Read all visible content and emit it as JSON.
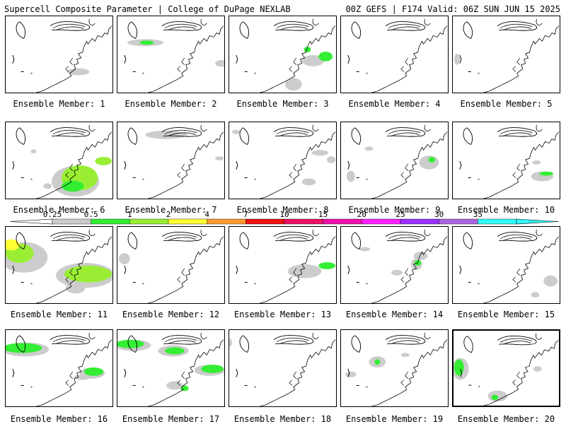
{
  "header": {
    "left": "Supercell Composite Parameter | College of DuPage NEXLAB",
    "right": "00Z GEFS | F174 Valid: 06Z SUN JUN 15 2025"
  },
  "label_prefix": "Ensemble Member: ",
  "selected_member": 20,
  "colorbar": {
    "ticks": [
      "0.25",
      "0.5",
      "1",
      "2",
      "4",
      "7",
      "10",
      "15",
      "20",
      "25",
      "30",
      "35"
    ],
    "colors": [
      "#cccccc",
      "#33ee33",
      "#99ee33",
      "#ffff33",
      "#ff9933",
      "#ee1111",
      "#ee1166",
      "#ee11aa",
      "#ff22ff",
      "#9933ff",
      "#aa66dd",
      "#33ffff"
    ]
  },
  "members": [
    {
      "n": "1",
      "label": "Ensemble Member: 1"
    },
    {
      "n": "2",
      "label": "Ensemble Member: 2"
    },
    {
      "n": "3",
      "label": "Ensemble Member: 3"
    },
    {
      "n": "4",
      "label": "Ensemble Member: 4"
    },
    {
      "n": "5",
      "label": "Ensemble Member: 5"
    },
    {
      "n": "6",
      "label": "Ensemble Member: 6"
    },
    {
      "n": "7",
      "label": "Ensemble Member: 7"
    },
    {
      "n": "8",
      "label": "Ensemble Member: 8"
    },
    {
      "n": "9",
      "label": "Ensemble Member: 9"
    },
    {
      "n": "10",
      "label": "Ensemble Member: 10"
    },
    {
      "n": "11",
      "label": "Ensemble Member: 11"
    },
    {
      "n": "12",
      "label": "Ensemble Member: 12"
    },
    {
      "n": "13",
      "label": "Ensemble Member: 13"
    },
    {
      "n": "14",
      "label": "Ensemble Member: 14"
    },
    {
      "n": "15",
      "label": "Ensemble Member: 15"
    },
    {
      "n": "16",
      "label": "Ensemble Member: 16"
    },
    {
      "n": "17",
      "label": "Ensemble Member: 17"
    },
    {
      "n": "18",
      "label": "Ensemble Member: 18"
    },
    {
      "n": "19",
      "label": "Ensemble Member: 19"
    },
    {
      "n": "20",
      "label": "Ensemble Member: 20"
    }
  ]
}
